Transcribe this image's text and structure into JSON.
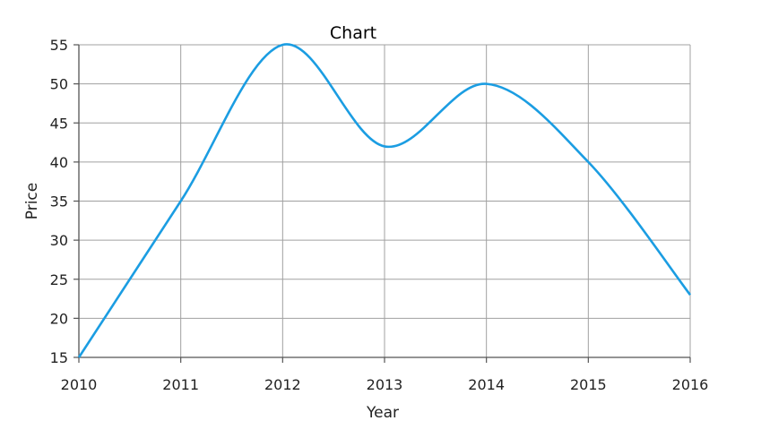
{
  "chart_data": {
    "type": "line",
    "title": "Chart",
    "xlabel": "Year",
    "ylabel": "Price",
    "x": [
      2010,
      2011,
      2012,
      2013,
      2014,
      2015,
      2016
    ],
    "x_tick_labels": [
      "2010",
      "2011",
      "2012",
      "2013",
      "2014",
      "2015",
      "2016"
    ],
    "y_tick_labels": [
      "15",
      "20",
      "25",
      "30",
      "35",
      "40",
      "45",
      "50",
      "55"
    ],
    "xlim": [
      2010,
      2016
    ],
    "ylim": [
      15,
      55
    ],
    "y_step": 5,
    "grid": true,
    "smooth": true,
    "series": [
      {
        "name": "Price",
        "values": [
          15,
          35,
          55,
          42,
          50,
          40,
          23
        ],
        "color": "#1b9de2"
      }
    ]
  }
}
